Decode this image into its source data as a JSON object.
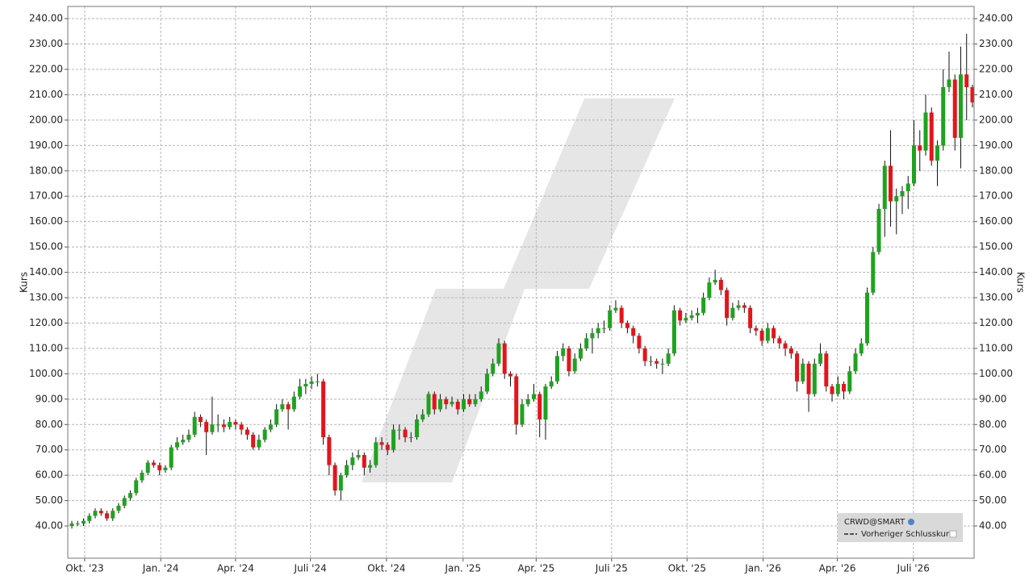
{
  "chart_data": {
    "type": "candlestick",
    "y_axis_label": "Kurs",
    "legend": {
      "symbol": "CRWD@SMART",
      "entry": "Vorheriger Schlusskurs"
    },
    "up_color": "#1ea31e",
    "down_color": "#e5141b",
    "grid": true,
    "ylim": [
      27.3,
      244.8
    ],
    "yticks": [
      {
        "value": 40,
        "label": "40.00"
      },
      {
        "value": 50,
        "label": "50.00"
      },
      {
        "value": 60,
        "label": "60.00"
      },
      {
        "value": 70,
        "label": "70.00"
      },
      {
        "value": 80,
        "label": "80.00"
      },
      {
        "value": 90,
        "label": "90.00"
      },
      {
        "value": 100,
        "label": "100.00"
      },
      {
        "value": 110,
        "label": "110.00"
      },
      {
        "value": 120,
        "label": "120.00"
      },
      {
        "value": 130,
        "label": "130.00"
      },
      {
        "value": 140,
        "label": "140.00"
      },
      {
        "value": 150,
        "label": "150.00"
      },
      {
        "value": 160,
        "label": "160.00"
      },
      {
        "value": 170,
        "label": "170.00"
      },
      {
        "value": 180,
        "label": "180.00"
      },
      {
        "value": 190,
        "label": "190.00"
      },
      {
        "value": 200,
        "label": "200.00"
      },
      {
        "value": 210,
        "label": "210.00"
      },
      {
        "value": 220,
        "label": "220.00"
      },
      {
        "value": 230,
        "label": "230.00"
      },
      {
        "value": 240,
        "label": "240.00"
      }
    ],
    "xlim": [
      -0.69,
      154.28
    ],
    "xticks": [
      {
        "value": 2.2,
        "label": "Okt. '23"
      },
      {
        "value": 15.2,
        "label": "Jan. '24"
      },
      {
        "value": 28.0,
        "label": "Apr. '24"
      },
      {
        "value": 40.8,
        "label": "Juli '24"
      },
      {
        "value": 53.8,
        "label": "Okt. '24"
      },
      {
        "value": 66.9,
        "label": "Jan. '25"
      },
      {
        "value": 79.4,
        "label": "Apr. '25"
      },
      {
        "value": 92.3,
        "label": "Juli '25"
      },
      {
        "value": 105.2,
        "label": "Okt. '25"
      },
      {
        "value": 118.2,
        "label": "Jan. '26"
      },
      {
        "value": 130.9,
        "label": "Apr. '26"
      },
      {
        "value": 143.9,
        "label": "Juli '26"
      }
    ],
    "candles": [
      [
        40,
        42,
        39,
        41
      ],
      [
        41,
        42,
        40,
        41
      ],
      [
        41,
        43,
        40,
        42
      ],
      [
        42,
        45,
        41,
        44
      ],
      [
        44,
        47,
        43,
        46
      ],
      [
        46,
        47,
        44,
        45
      ],
      [
        45,
        46,
        42,
        43
      ],
      [
        43,
        47,
        42,
        46
      ],
      [
        46,
        49,
        45,
        48
      ],
      [
        48,
        52,
        47,
        51
      ],
      [
        51,
        54,
        50,
        53
      ],
      [
        53,
        59,
        52,
        58
      ],
      [
        58,
        62,
        57,
        61
      ],
      [
        61,
        66,
        60,
        65
      ],
      [
        65,
        66,
        63,
        64
      ],
      [
        64,
        65,
        60,
        62
      ],
      [
        62,
        64,
        61,
        63
      ],
      [
        63,
        72,
        62,
        71
      ],
      [
        71,
        75,
        70,
        73
      ],
      [
        73,
        76,
        72,
        74
      ],
      [
        74,
        78,
        73,
        76
      ],
      [
        76,
        85,
        75,
        83
      ],
      [
        83,
        84,
        79,
        81
      ],
      [
        81,
        82,
        68,
        77
      ],
      [
        77,
        91,
        76,
        80
      ],
      [
        80,
        84,
        77,
        80
      ],
      [
        80,
        82,
        77,
        79
      ],
      [
        79,
        83,
        78,
        81
      ],
      [
        81,
        82,
        78,
        80
      ],
      [
        80,
        81,
        76,
        78
      ],
      [
        78,
        79,
        74,
        76
      ],
      [
        76,
        77,
        70,
        71
      ],
      [
        71,
        76,
        70,
        74
      ],
      [
        74,
        79,
        73,
        78
      ],
      [
        78,
        82,
        77,
        80
      ],
      [
        80,
        88,
        79,
        86
      ],
      [
        86,
        90,
        85,
        88
      ],
      [
        88,
        89,
        78,
        86
      ],
      [
        86,
        93,
        85,
        91
      ],
      [
        91,
        98,
        90,
        95
      ],
      [
        95,
        98,
        92,
        96
      ],
      [
        96,
        99,
        94,
        97
      ],
      [
        97,
        100,
        95,
        97
      ],
      [
        97,
        98,
        72,
        75
      ],
      [
        75,
        76,
        60,
        64
      ],
      [
        64,
        65,
        52,
        54
      ],
      [
        54,
        61,
        50,
        60
      ],
      [
        60,
        66,
        59,
        64
      ],
      [
        64,
        69,
        62,
        67
      ],
      [
        67,
        70,
        66,
        68
      ],
      [
        68,
        69,
        60,
        63
      ],
      [
        63,
        66,
        61,
        64
      ],
      [
        64,
        75,
        63,
        73
      ],
      [
        73,
        75,
        70,
        72
      ],
      [
        72,
        73,
        68,
        70
      ],
      [
        70,
        80,
        69,
        78
      ],
      [
        78,
        80,
        74,
        78
      ],
      [
        78,
        79,
        73,
        75
      ],
      [
        75,
        77,
        73,
        75
      ],
      [
        75,
        84,
        74,
        82
      ],
      [
        82,
        86,
        81,
        84
      ],
      [
        84,
        93,
        83,
        92
      ],
      [
        92,
        93,
        84,
        86
      ],
      [
        86,
        92,
        85,
        90
      ],
      [
        90,
        91,
        86,
        88
      ],
      [
        88,
        91,
        87,
        89
      ],
      [
        89,
        90,
        84,
        86
      ],
      [
        86,
        92,
        85,
        90
      ],
      [
        90,
        92,
        87,
        88
      ],
      [
        88,
        92,
        87,
        90
      ],
      [
        90,
        95,
        89,
        93
      ],
      [
        93,
        102,
        92,
        100
      ],
      [
        100,
        106,
        99,
        104
      ],
      [
        104,
        114,
        103,
        112
      ],
      [
        112,
        113,
        98,
        100
      ],
      [
        100,
        101,
        95,
        99
      ],
      [
        99,
        100,
        76,
        80
      ],
      [
        80,
        90,
        79,
        88
      ],
      [
        88,
        92,
        87,
        90
      ],
      [
        90,
        96,
        89,
        92
      ],
      [
        92,
        93,
        75,
        82
      ],
      [
        82,
        96,
        74,
        95
      ],
      [
        95,
        99,
        94,
        97
      ],
      [
        97,
        109,
        96,
        107
      ],
      [
        107,
        112,
        105,
        110
      ],
      [
        110,
        111,
        99,
        101
      ],
      [
        101,
        108,
        100,
        106
      ],
      [
        106,
        112,
        105,
        110
      ],
      [
        110,
        116,
        109,
        114
      ],
      [
        114,
        118,
        108,
        116
      ],
      [
        116,
        120,
        114,
        118
      ],
      [
        118,
        121,
        116,
        118
      ],
      [
        118,
        127,
        117,
        125
      ],
      [
        125,
        129,
        124,
        126
      ],
      [
        126,
        127,
        118,
        120
      ],
      [
        120,
        121,
        116,
        118
      ],
      [
        118,
        119,
        112,
        115
      ],
      [
        115,
        116,
        108,
        110
      ],
      [
        110,
        111,
        103,
        105
      ],
      [
        105,
        107,
        103,
        105
      ],
      [
        105,
        106,
        102,
        104
      ],
      [
        104,
        106,
        100,
        104
      ],
      [
        104,
        110,
        103,
        108
      ],
      [
        108,
        127,
        107,
        125
      ],
      [
        125,
        126,
        119,
        121
      ],
      [
        121,
        124,
        120,
        122
      ],
      [
        122,
        125,
        121,
        123
      ],
      [
        123,
        126,
        120,
        124
      ],
      [
        124,
        132,
        123,
        130
      ],
      [
        130,
        138,
        129,
        136
      ],
      [
        136,
        141,
        135,
        137
      ],
      [
        137,
        138,
        131,
        133
      ],
      [
        133,
        134,
        119,
        122
      ],
      [
        122,
        128,
        121,
        126
      ],
      [
        126,
        129,
        125,
        127
      ],
      [
        127,
        128,
        124,
        126
      ],
      [
        126,
        127,
        116,
        118
      ],
      [
        118,
        119,
        115,
        117
      ],
      [
        117,
        118,
        111,
        113
      ],
      [
        113,
        120,
        112,
        118
      ],
      [
        118,
        119,
        112,
        114
      ],
      [
        114,
        115,
        110,
        112
      ],
      [
        112,
        113,
        107,
        110
      ],
      [
        110,
        111,
        106,
        108
      ],
      [
        108,
        109,
        93,
        97
      ],
      [
        97,
        106,
        96,
        104
      ],
      [
        104,
        105,
        85,
        92
      ],
      [
        92,
        106,
        91,
        104
      ],
      [
        104,
        112,
        103,
        108
      ],
      [
        108,
        109,
        93,
        95
      ],
      [
        95,
        96,
        89,
        92
      ],
      [
        92,
        99,
        91,
        96
      ],
      [
        96,
        97,
        90,
        93
      ],
      [
        93,
        103,
        92,
        101
      ],
      [
        101,
        110,
        100,
        108
      ],
      [
        108,
        114,
        107,
        112
      ],
      [
        112,
        134,
        111,
        132
      ],
      [
        132,
        150,
        131,
        148
      ],
      [
        148,
        167,
        147,
        165
      ],
      [
        165,
        184,
        154,
        182
      ],
      [
        182,
        196,
        158,
        168
      ],
      [
        168,
        173,
        155,
        170
      ],
      [
        170,
        174,
        163,
        172
      ],
      [
        172,
        178,
        165,
        175
      ],
      [
        175,
        200,
        174,
        190
      ],
      [
        190,
        196,
        180,
        188
      ],
      [
        188,
        210,
        186,
        203
      ],
      [
        203,
        205,
        182,
        184
      ],
      [
        184,
        192,
        174,
        190
      ],
      [
        190,
        220,
        188,
        213
      ],
      [
        213,
        227,
        211,
        216
      ],
      [
        216,
        218,
        188,
        193
      ],
      [
        193,
        229,
        181,
        218
      ],
      [
        218,
        234,
        200,
        213
      ],
      [
        213,
        214,
        205,
        207
      ]
    ]
  }
}
